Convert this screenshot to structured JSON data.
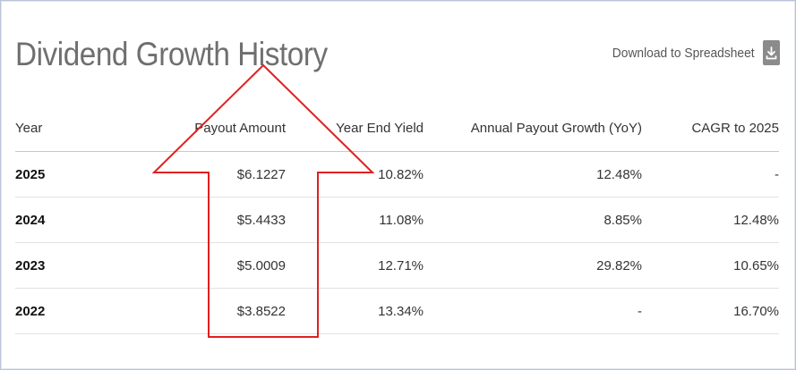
{
  "title": "Dividend Growth History",
  "download": {
    "label": "Download to Spreadsheet",
    "icon": "download-icon"
  },
  "table": {
    "headers": [
      "Year",
      "Payout Amount",
      "Year End Yield",
      "Annual Payout Growth (YoY)",
      "CAGR to 2025"
    ],
    "rows": [
      [
        "2025",
        "$6.1227",
        "10.82%",
        "12.48%",
        "-"
      ],
      [
        "2024",
        "$5.4433",
        "11.08%",
        "8.85%",
        "12.48%"
      ],
      [
        "2023",
        "$5.0009",
        "12.71%",
        "29.82%",
        "10.65%"
      ],
      [
        "2022",
        "$3.8522",
        "13.34%",
        "-",
        "16.70%"
      ]
    ]
  },
  "annotation": {
    "shape": "up-arrow-outline",
    "color": "#e02020"
  }
}
